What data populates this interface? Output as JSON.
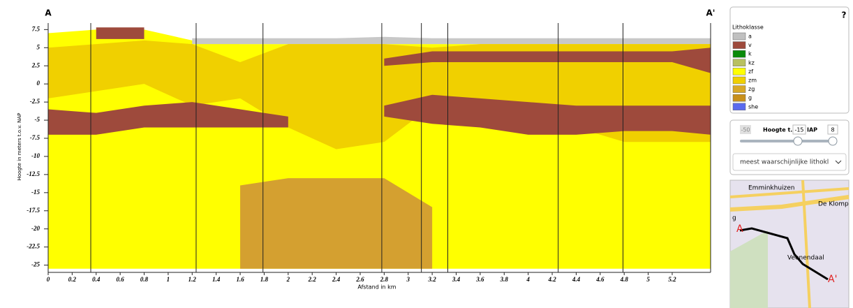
{
  "chart_data": {
    "type": "section",
    "section_labels": [
      "A",
      "A'"
    ],
    "xlabel": "Afstand in km",
    "ylabel": "Hoogte in meters t.o.v. NAP",
    "xlim": [
      0,
      5.52
    ],
    "ylim": [
      -26,
      8.4
    ],
    "xticks": [
      0,
      0.2,
      0.4,
      0.6,
      0.8,
      1,
      1.2,
      1.4,
      1.6,
      1.8,
      2,
      2.2,
      2.4,
      2.6,
      2.8,
      3,
      3.2,
      3.4,
      3.6,
      3.8,
      4,
      4.2,
      4.4,
      4.6,
      4.8,
      5,
      5.2
    ],
    "yticks": [
      7.5,
      5,
      2.5,
      0,
      -2.5,
      -5,
      -7.5,
      -10,
      -12.5,
      -15,
      -17.5,
      -20,
      -22.5,
      -25
    ],
    "boreholes": [
      0.355,
      1.233,
      1.79,
      2.78,
      3.11,
      3.33,
      4.25,
      4.79,
      5.52
    ],
    "x": [
      0,
      0.4,
      0.8,
      1.2,
      1.6,
      2.0,
      2.4,
      2.8,
      3.2,
      3.6,
      4.0,
      4.4,
      4.8,
      5.2,
      5.52
    ],
    "units": [
      {
        "color": "#ffff00",
        "top": [
          7,
          7.5,
          7.5,
          6,
          5.5,
          5.5,
          5.5,
          5.5,
          5.5,
          5.5,
          5.5,
          5.5,
          5.5,
          5.5,
          5.5
        ],
        "bottom": [
          -25.5,
          -25.5,
          -25.5,
          -25.5,
          -25.5,
          -25.5,
          -25.5,
          -25.5,
          -25.5,
          -25.5,
          -25.5,
          -25.5,
          -25.5,
          -25.5,
          -25.5
        ]
      },
      {
        "color": "#c8c8c8",
        "top": [
          null,
          null,
          null,
          6.3,
          6.3,
          6.3,
          6.3,
          6.5,
          6.3,
          6.3,
          6.3,
          6.3,
          6.3,
          6.3,
          6.3
        ],
        "bottom": [
          null,
          null,
          null,
          5.5,
          5.5,
          5.5,
          5.5,
          5.5,
          5.5,
          5.5,
          5.5,
          5.5,
          5.5,
          5.5,
          5.5
        ]
      },
      {
        "color": "#f0d000",
        "top": [
          5,
          5.5,
          6,
          5.5,
          3,
          5.5,
          5.5,
          5.5,
          5,
          5.5,
          5.5,
          5.5,
          5.5,
          5.5,
          5.5
        ],
        "bottom": [
          -2,
          -1,
          0,
          -3,
          -2,
          -6,
          -9,
          -8,
          -3,
          -4,
          -5,
          -6,
          -8,
          -8,
          -8
        ]
      },
      {
        "color": "#9e4a3c",
        "top": [
          null,
          7.8,
          7.8,
          null,
          null,
          null,
          null,
          null,
          null,
          null,
          null,
          null,
          null,
          null,
          null
        ],
        "bottom": [
          null,
          6.2,
          6.2,
          null,
          null,
          null,
          null,
          null,
          null,
          null,
          null,
          null,
          null,
          null,
          null
        ]
      },
      {
        "color": "#9e4a3c",
        "top": [
          null,
          null,
          null,
          null,
          null,
          null,
          null,
          3.5,
          4.5,
          4.5,
          4.5,
          4.5,
          4.5,
          4.5,
          5
        ],
        "bottom": [
          null,
          null,
          null,
          null,
          null,
          null,
          null,
          2.5,
          3,
          3,
          3,
          3,
          3,
          3,
          1.5
        ]
      },
      {
        "color": "#9e4a3c",
        "top": [
          -3.5,
          -4,
          -3,
          -2.5,
          -3.5,
          -4.5,
          null,
          -3,
          -1.5,
          -2,
          -2.5,
          -3,
          -3,
          -3,
          -3
        ],
        "bottom": [
          -7,
          -7,
          -6,
          -6,
          -6,
          -6,
          null,
          -4.5,
          -5.5,
          -6,
          -7,
          -7,
          -6.5,
          -6.5,
          -7
        ]
      },
      {
        "color": "#d4a030",
        "top": [
          null,
          null,
          null,
          null,
          -14,
          -13,
          -13,
          -13,
          -17,
          null,
          null,
          null,
          null,
          null,
          null
        ],
        "bottom": [
          null,
          null,
          null,
          null,
          -25.5,
          -25.5,
          -25.5,
          -25.5,
          -25.5,
          null,
          null,
          null,
          null,
          null,
          null
        ]
      }
    ],
    "legend_title": "Lithoklasse",
    "classes": [
      {
        "name": "a",
        "color": "#c0c0c0"
      },
      {
        "name": "v",
        "color": "#9e4a3c"
      },
      {
        "name": "k",
        "color": "#0a8a0a"
      },
      {
        "name": "kz",
        "color": "#b8c060"
      },
      {
        "name": "zf",
        "color": "#ffff00"
      },
      {
        "name": "zm",
        "color": "#f0d000"
      },
      {
        "name": "zg",
        "color": "#d8a828"
      },
      {
        "name": "g",
        "color": "#c8901c"
      },
      {
        "name": "she",
        "color": "#5a6aee"
      }
    ]
  },
  "panel": {
    "help": "?",
    "slider_min": "-50",
    "slider_label": "Hoogte t.",
    "slider_value": "-15",
    "slider_label_end": "IAP",
    "slider_max": "8",
    "select": "meest waarschijnlijke lithokl"
  },
  "map": {
    "labels": [
      "Emminkhuizen",
      "De Klomp",
      "g",
      "Veenendaal"
    ],
    "start": "A",
    "end": "A'"
  }
}
